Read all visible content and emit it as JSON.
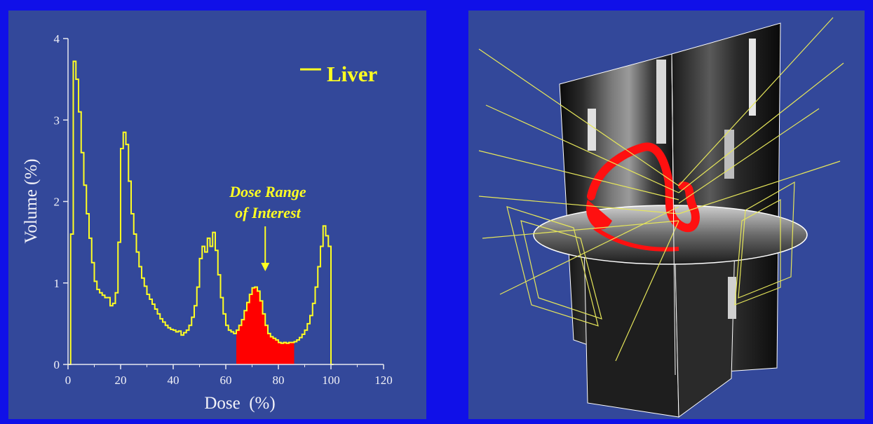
{
  "chart_data": {
    "type": "line",
    "title": "",
    "xlabel": "Dose  (%)",
    "ylabel": "Volume (%)",
    "xlim": [
      0,
      120
    ],
    "ylim": [
      0,
      4
    ],
    "xticks": [
      "0",
      "20",
      "40",
      "60",
      "80",
      "100",
      "120"
    ],
    "yticks": [
      "0",
      "1",
      "2",
      "3",
      "4"
    ],
    "grid": false,
    "legend_position": "top-right",
    "series": [
      {
        "name": "Liver",
        "color": "#ffff22",
        "x": [
          0,
          1,
          2,
          3,
          4,
          5,
          6,
          7,
          8,
          9,
          10,
          11,
          12,
          13,
          14,
          15,
          16,
          17,
          18,
          19,
          20,
          21,
          22,
          23,
          24,
          25,
          26,
          27,
          28,
          29,
          30,
          31,
          32,
          33,
          34,
          35,
          36,
          37,
          38,
          39,
          40,
          41,
          42,
          43,
          44,
          45,
          46,
          47,
          48,
          49,
          50,
          51,
          52,
          53,
          54,
          55,
          56,
          57,
          58,
          59,
          60,
          61,
          62,
          63,
          64,
          65,
          66,
          67,
          68,
          69,
          70,
          71,
          72,
          73,
          74,
          75,
          76,
          77,
          78,
          79,
          80,
          81,
          82,
          83,
          84,
          85,
          86,
          87,
          88,
          89,
          90,
          91,
          92,
          93,
          94,
          95,
          96,
          97,
          98,
          99,
          100,
          101
        ],
        "y": [
          0,
          1.6,
          3.72,
          3.5,
          3.1,
          2.6,
          2.2,
          1.85,
          1.55,
          1.25,
          1.02,
          0.92,
          0.88,
          0.85,
          0.82,
          0.82,
          0.72,
          0.75,
          0.88,
          1.5,
          2.65,
          2.85,
          2.7,
          2.25,
          1.85,
          1.6,
          1.38,
          1.2,
          1.06,
          0.96,
          0.86,
          0.8,
          0.74,
          0.68,
          0.62,
          0.56,
          0.52,
          0.48,
          0.45,
          0.43,
          0.42,
          0.4,
          0.41,
          0.36,
          0.39,
          0.42,
          0.48,
          0.58,
          0.72,
          0.95,
          1.3,
          1.45,
          1.38,
          1.55,
          1.45,
          1.62,
          1.4,
          1.1,
          0.82,
          0.62,
          0.48,
          0.42,
          0.4,
          0.38,
          0.42,
          0.48,
          0.55,
          0.66,
          0.76,
          0.86,
          0.94,
          0.95,
          0.9,
          0.78,
          0.62,
          0.48,
          0.38,
          0.34,
          0.32,
          0.3,
          0.27,
          0.26,
          0.27,
          0.26,
          0.27,
          0.27,
          0.28,
          0.3,
          0.33,
          0.37,
          0.42,
          0.5,
          0.6,
          0.75,
          0.95,
          1.2,
          1.45,
          1.7,
          1.58,
          1.45,
          0,
          0
        ]
      }
    ],
    "highlight": {
      "label_line1": "Dose Range",
      "label_line2": "of Interest",
      "x_range": [
        64,
        86
      ],
      "arrow_x": 75,
      "fill_color": "#ff0000"
    }
  },
  "legend": {
    "label": "Liver"
  },
  "image_panel": {
    "icon": "3d-ct-volume-render"
  }
}
